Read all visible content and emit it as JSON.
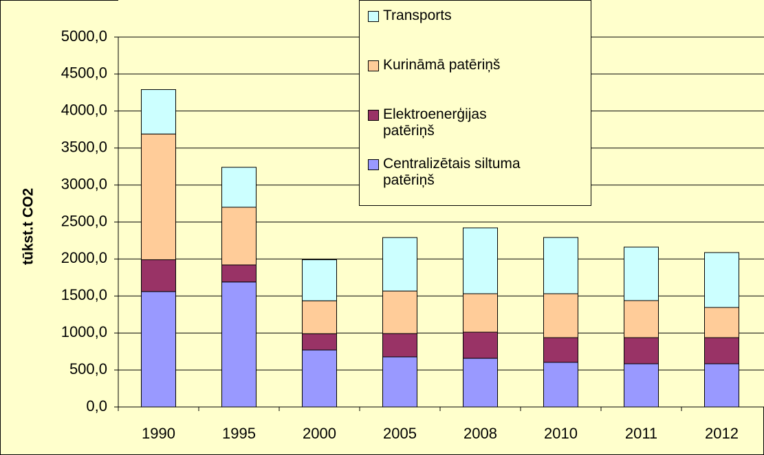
{
  "chart_data": {
    "type": "stacked_bar",
    "y_label": "tūkst.t CO2",
    "categories": [
      "1990",
      "1995",
      "2000",
      "2005",
      "2008",
      "2010",
      "2011",
      "2012"
    ],
    "series": [
      {
        "name": "Centralizētais siltuma patēriņš",
        "color": "#9999ff",
        "values": [
          1560,
          1690,
          770,
          677,
          658,
          603,
          584,
          584
        ]
      },
      {
        "name": "Elektroenerģijas patēriņš",
        "color": "#993366",
        "values": [
          430,
          230,
          220,
          315,
          353,
          334,
          353,
          353
        ]
      },
      {
        "name": "Kurināmā patēriņš",
        "color": "#ffcc99",
        "values": [
          1700,
          780,
          445,
          575,
          520,
          594,
          501,
          408
        ]
      },
      {
        "name": "Transports",
        "color": "#ccffff",
        "values": [
          600,
          540,
          555,
          723,
          890,
          760,
          723,
          742
        ]
      }
    ],
    "ylim": [
      0,
      5000
    ],
    "yticks": [
      {
        "value": 0,
        "label": "0,0"
      },
      {
        "value": 500,
        "label": "500,0"
      },
      {
        "value": 1000,
        "label": "1000,0"
      },
      {
        "value": 1500,
        "label": "1500,0"
      },
      {
        "value": 2000,
        "label": "2000,0"
      },
      {
        "value": 2500,
        "label": "2500,0"
      },
      {
        "value": 3000,
        "label": "3000,0"
      },
      {
        "value": 3500,
        "label": "3500,0"
      },
      {
        "value": 4000,
        "label": "4000,0"
      },
      {
        "value": 4500,
        "label": "4500,0"
      },
      {
        "value": 5000,
        "label": "5000,0"
      }
    ],
    "grid": true
  }
}
